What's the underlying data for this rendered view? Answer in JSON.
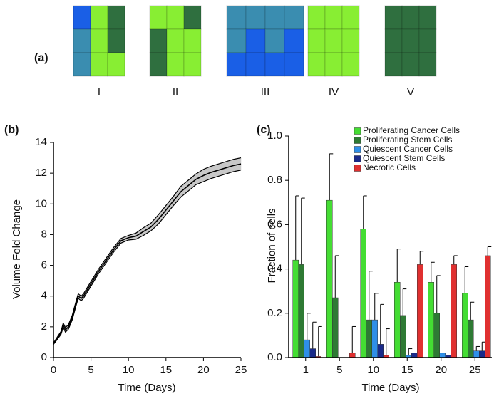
{
  "panel_a": {
    "label": "(a)",
    "labels": [
      "I",
      "II",
      "III",
      "IV",
      "V"
    ]
  },
  "chart_data": [
    {
      "type": "line",
      "title": "(b)",
      "xlabel": "Time (Days)",
      "ylabel": "Volume Fold Change",
      "x": [
        0,
        1,
        1.3,
        1.6,
        2,
        2.5,
        3,
        3.3,
        3.7,
        4,
        5,
        6,
        7,
        8,
        9,
        10,
        11,
        12,
        13,
        14,
        15,
        16,
        17,
        18,
        19,
        20,
        21,
        22,
        23,
        24,
        25
      ],
      "values": [
        0.9,
        1.6,
        2.1,
        1.8,
        2.0,
        2.6,
        3.5,
        4.0,
        3.85,
        4.0,
        4.8,
        5.6,
        6.3,
        7.0,
        7.6,
        7.8,
        7.9,
        8.2,
        8.5,
        9.0,
        9.6,
        10.2,
        10.8,
        11.2,
        11.6,
        11.85,
        12.05,
        12.2,
        12.35,
        12.5,
        12.6
      ],
      "lower": [
        0.85,
        1.5,
        1.95,
        1.65,
        1.85,
        2.45,
        3.35,
        3.85,
        3.7,
        3.85,
        4.65,
        5.45,
        6.15,
        6.85,
        7.45,
        7.65,
        7.7,
        7.95,
        8.25,
        8.7,
        9.3,
        9.9,
        10.45,
        10.85,
        11.25,
        11.45,
        11.65,
        11.8,
        11.95,
        12.1,
        12.2
      ],
      "upper": [
        0.95,
        1.7,
        2.25,
        1.95,
        2.15,
        2.75,
        3.65,
        4.15,
        4.0,
        4.15,
        4.95,
        5.75,
        6.45,
        7.15,
        7.75,
        7.95,
        8.1,
        8.45,
        8.75,
        9.3,
        9.9,
        10.5,
        11.15,
        11.55,
        11.95,
        12.25,
        12.45,
        12.6,
        12.75,
        12.9,
        13.0
      ],
      "color": "#000000",
      "band_color": "#c8c8c8",
      "xlim": [
        0,
        25
      ],
      "xticks": [
        0,
        5,
        10,
        15,
        20,
        25
      ],
      "ylim": [
        0,
        14
      ],
      "yticks": [
        0,
        2,
        4,
        6,
        8,
        10,
        12,
        14
      ]
    },
    {
      "type": "bar",
      "title": "(c)",
      "xlabel": "Time (Days)",
      "ylabel": "Fraction of cells",
      "categories": [
        "1",
        "5",
        "10",
        "15",
        "20",
        "25"
      ],
      "series": [
        {
          "name": "Proliferating Cancer Cells",
          "color": "#44dd33",
          "values": [
            0.44,
            0.71,
            0.58,
            0.34,
            0.34,
            0.29
          ],
          "errors": [
            0.29,
            0.21,
            0.15,
            0.15,
            0.09,
            0.12
          ]
        },
        {
          "name": "Proliferating Stem Cells",
          "color": "#2e7a34",
          "values": [
            0.42,
            0.27,
            0.17,
            0.19,
            0.2,
            0.17
          ],
          "errors": [
            0.3,
            0.19,
            0.22,
            0.12,
            0.17,
            0.08
          ]
        },
        {
          "name": "Quiescent Cancer Cells",
          "color": "#2f8fe8",
          "values": [
            0.08,
            0.0,
            0.17,
            0.01,
            0.02,
            0.03
          ],
          "errors": [
            0.12,
            0.0,
            0.12,
            0.03,
            0.0,
            0.02
          ]
        },
        {
          "name": "Quiescent Stem Cells",
          "color": "#1a2a8a",
          "values": [
            0.04,
            0.0,
            0.06,
            0.02,
            0.01,
            0.03
          ],
          "errors": [
            0.12,
            0.0,
            0.18,
            0.0,
            0.0,
            0.04
          ]
        },
        {
          "name": "Necrotic Cells",
          "color": "#e03030",
          "values": [
            0.005,
            0.02,
            0.01,
            0.42,
            0.42,
            0.46
          ],
          "errors": [
            0.135,
            0.12,
            0.12,
            0.06,
            0.04,
            0.04
          ]
        }
      ],
      "ylim": [
        0,
        1.0
      ],
      "yticks": [
        {
          "value": 0,
          "label": "0.0"
        },
        0.2,
        0.4,
        0.6,
        0.8,
        {
          "value": 1.0,
          "label": "1.0"
        }
      ],
      "legend": "top-right"
    }
  ]
}
